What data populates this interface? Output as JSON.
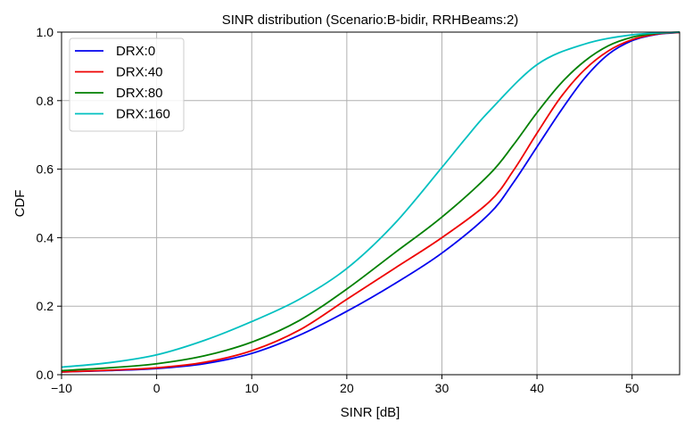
{
  "chart_data": {
    "type": "line",
    "title": "SINR distribution (Scenario:B-bidir, RRHBeams:2)",
    "xlabel": "SINR [dB]",
    "ylabel": "CDF",
    "xlim": [
      -10,
      55
    ],
    "ylim": [
      0,
      1
    ],
    "xticks": [
      -10,
      0,
      10,
      20,
      30,
      40,
      50
    ],
    "xtick_labels": [
      "−10",
      "0",
      "10",
      "20",
      "30",
      "40",
      "50"
    ],
    "yticks": [
      0,
      0.2,
      0.4,
      0.6,
      0.8,
      1.0
    ],
    "ytick_labels": [
      "0.0",
      "0.2",
      "0.4",
      "0.6",
      "0.8",
      "1.0"
    ],
    "grid": true,
    "legend_position": "top-left",
    "series": [
      {
        "name": "DRX:0",
        "color": "#0000ee",
        "x": [
          -10,
          -5,
          0,
          5,
          10,
          15,
          20,
          25,
          30,
          35,
          37.5,
          40,
          42.5,
          45,
          47.5,
          50,
          52.5,
          55
        ],
        "y": [
          0.008,
          0.012,
          0.018,
          0.032,
          0.062,
          0.115,
          0.185,
          0.265,
          0.355,
          0.47,
          0.56,
          0.665,
          0.77,
          0.865,
          0.935,
          0.975,
          0.993,
          0.999
        ]
      },
      {
        "name": "DRX:40",
        "color": "#ee0000",
        "x": [
          -10,
          -5,
          0,
          5,
          10,
          15,
          20,
          25,
          30,
          35,
          37.5,
          40,
          42.5,
          45,
          47.5,
          50,
          52.5,
          55
        ],
        "y": [
          0.008,
          0.013,
          0.02,
          0.036,
          0.07,
          0.13,
          0.22,
          0.31,
          0.4,
          0.505,
          0.595,
          0.705,
          0.81,
          0.89,
          0.945,
          0.978,
          0.994,
          0.999
        ]
      },
      {
        "name": "DRX:80",
        "color": "#008000",
        "x": [
          -10,
          -5,
          0,
          5,
          10,
          15,
          20,
          25,
          30,
          35,
          37.5,
          40,
          42.5,
          45,
          47.5,
          50,
          52.5,
          55
        ],
        "y": [
          0.012,
          0.02,
          0.032,
          0.055,
          0.095,
          0.158,
          0.25,
          0.355,
          0.46,
          0.585,
          0.67,
          0.765,
          0.85,
          0.915,
          0.96,
          0.985,
          0.996,
          1.0
        ]
      },
      {
        "name": "DRX:160",
        "color": "#00c0c0",
        "x": [
          -10,
          -5,
          0,
          5,
          10,
          15,
          20,
          25,
          30,
          32.5,
          35,
          40,
          45,
          50,
          55
        ],
        "y": [
          0.022,
          0.035,
          0.058,
          0.1,
          0.155,
          0.22,
          0.31,
          0.44,
          0.605,
          0.69,
          0.77,
          0.905,
          0.965,
          0.992,
          1.0
        ]
      }
    ]
  }
}
